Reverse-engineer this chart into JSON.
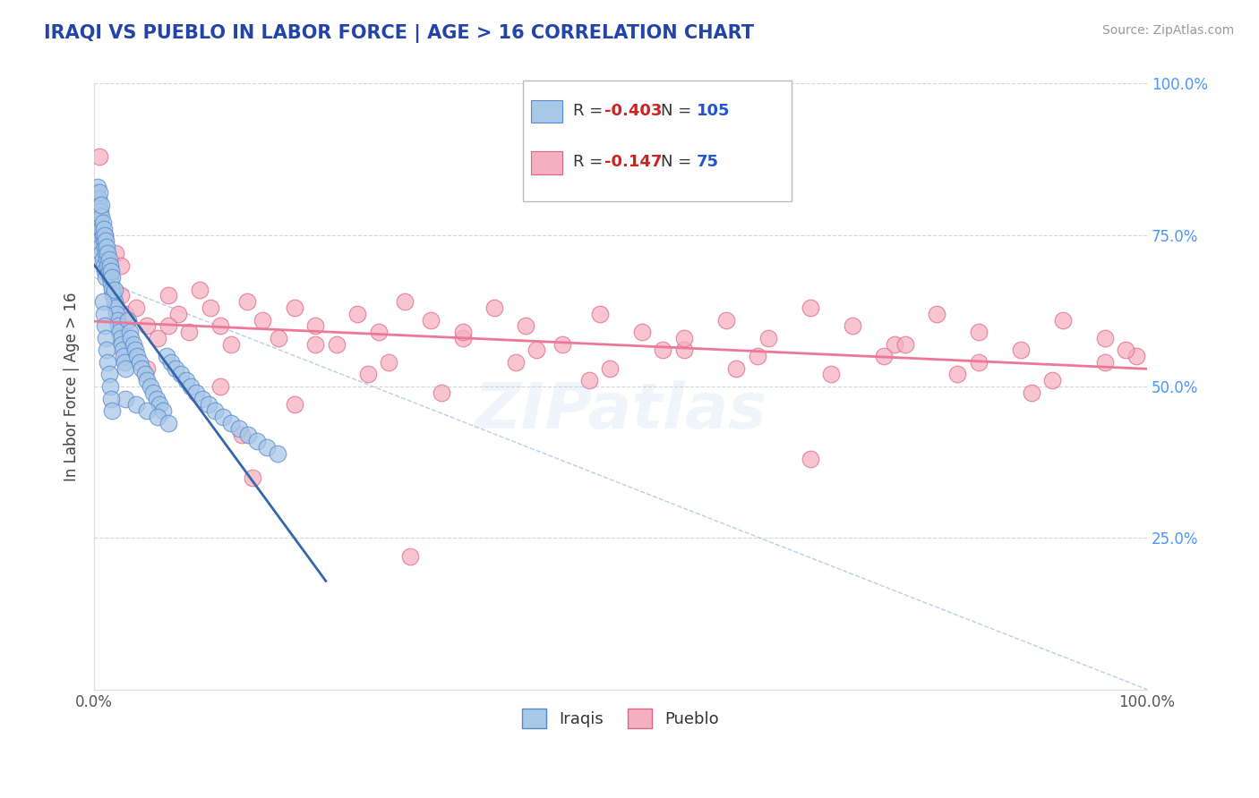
{
  "title": "IRAQI VS PUEBLO IN LABOR FORCE | AGE > 16 CORRELATION CHART",
  "source_text": "Source: ZipAtlas.com",
  "ylabel": "In Labor Force | Age > 16",
  "xlim": [
    0.0,
    1.0
  ],
  "ylim": [
    0.0,
    1.0
  ],
  "iraqi_R": -0.403,
  "iraqi_N": 105,
  "pueblo_R": -0.147,
  "pueblo_N": 75,
  "iraqi_color": "#a8c8e8",
  "iraqi_edge": "#5588cc",
  "pueblo_color": "#f5b0c0",
  "pueblo_edge": "#dd6688",
  "iraqi_line_color": "#3366aa",
  "pueblo_line_color": "#ee7799",
  "title_color": "#2244aa",
  "source_color": "#999999",
  "legend_R_color": "#cc2222",
  "legend_N_color": "#2255cc",
  "right_tick_color": "#4499ff",
  "watermark": "ZIPat las",
  "iraqi_x": [
    0.001,
    0.002,
    0.002,
    0.003,
    0.003,
    0.003,
    0.004,
    0.004,
    0.004,
    0.005,
    0.005,
    0.005,
    0.005,
    0.006,
    0.006,
    0.006,
    0.007,
    0.007,
    0.007,
    0.007,
    0.008,
    0.008,
    0.008,
    0.009,
    0.009,
    0.009,
    0.01,
    0.01,
    0.01,
    0.011,
    0.011,
    0.011,
    0.012,
    0.012,
    0.013,
    0.013,
    0.014,
    0.014,
    0.015,
    0.015,
    0.016,
    0.016,
    0.017,
    0.017,
    0.018,
    0.019,
    0.019,
    0.02,
    0.021,
    0.022,
    0.023,
    0.024,
    0.025,
    0.026,
    0.027,
    0.028,
    0.029,
    0.03,
    0.032,
    0.034,
    0.035,
    0.037,
    0.039,
    0.041,
    0.043,
    0.045,
    0.048,
    0.05,
    0.053,
    0.056,
    0.059,
    0.062,
    0.065,
    0.069,
    0.073,
    0.077,
    0.082,
    0.087,
    0.092,
    0.097,
    0.103,
    0.109,
    0.115,
    0.122,
    0.13,
    0.138,
    0.146,
    0.155,
    0.164,
    0.174,
    0.03,
    0.04,
    0.05,
    0.06,
    0.07,
    0.008,
    0.009,
    0.01,
    0.011,
    0.012,
    0.013,
    0.014,
    0.015,
    0.016,
    0.017
  ],
  "iraqi_y": [
    0.8,
    0.82,
    0.78,
    0.79,
    0.76,
    0.83,
    0.77,
    0.81,
    0.75,
    0.78,
    0.8,
    0.74,
    0.82,
    0.77,
    0.79,
    0.73,
    0.76,
    0.78,
    0.72,
    0.8,
    0.75,
    0.77,
    0.71,
    0.74,
    0.76,
    0.7,
    0.73,
    0.75,
    0.69,
    0.72,
    0.74,
    0.68,
    0.71,
    0.73,
    0.7,
    0.72,
    0.69,
    0.71,
    0.68,
    0.7,
    0.67,
    0.69,
    0.66,
    0.68,
    0.65,
    0.64,
    0.66,
    0.63,
    0.62,
    0.61,
    0.6,
    0.59,
    0.58,
    0.57,
    0.56,
    0.55,
    0.54,
    0.53,
    0.61,
    0.59,
    0.58,
    0.57,
    0.56,
    0.55,
    0.54,
    0.53,
    0.52,
    0.51,
    0.5,
    0.49,
    0.48,
    0.47,
    0.46,
    0.55,
    0.54,
    0.53,
    0.52,
    0.51,
    0.5,
    0.49,
    0.48,
    0.47,
    0.46,
    0.45,
    0.44,
    0.43,
    0.42,
    0.41,
    0.4,
    0.39,
    0.48,
    0.47,
    0.46,
    0.45,
    0.44,
    0.64,
    0.62,
    0.6,
    0.58,
    0.56,
    0.54,
    0.52,
    0.5,
    0.48,
    0.46
  ],
  "pueblo_x": [
    0.005,
    0.01,
    0.015,
    0.02,
    0.025,
    0.03,
    0.04,
    0.05,
    0.06,
    0.07,
    0.08,
    0.09,
    0.1,
    0.11,
    0.12,
    0.13,
    0.145,
    0.16,
    0.175,
    0.19,
    0.21,
    0.23,
    0.25,
    0.27,
    0.295,
    0.32,
    0.35,
    0.38,
    0.41,
    0.445,
    0.48,
    0.52,
    0.56,
    0.6,
    0.64,
    0.68,
    0.72,
    0.76,
    0.8,
    0.84,
    0.88,
    0.92,
    0.96,
    0.99,
    0.07,
    0.14,
    0.21,
    0.28,
    0.35,
    0.42,
    0.49,
    0.56,
    0.63,
    0.7,
    0.77,
    0.84,
    0.91,
    0.98,
    0.05,
    0.12,
    0.19,
    0.26,
    0.33,
    0.4,
    0.47,
    0.54,
    0.61,
    0.68,
    0.75,
    0.82,
    0.89,
    0.96,
    0.025,
    0.15,
    0.3
  ],
  "pueblo_y": [
    0.88,
    0.75,
    0.68,
    0.72,
    0.65,
    0.62,
    0.63,
    0.6,
    0.58,
    0.65,
    0.62,
    0.59,
    0.66,
    0.63,
    0.6,
    0.57,
    0.64,
    0.61,
    0.58,
    0.63,
    0.6,
    0.57,
    0.62,
    0.59,
    0.64,
    0.61,
    0.58,
    0.63,
    0.6,
    0.57,
    0.62,
    0.59,
    0.56,
    0.61,
    0.58,
    0.63,
    0.6,
    0.57,
    0.62,
    0.59,
    0.56,
    0.61,
    0.58,
    0.55,
    0.6,
    0.42,
    0.57,
    0.54,
    0.59,
    0.56,
    0.53,
    0.58,
    0.55,
    0.52,
    0.57,
    0.54,
    0.51,
    0.56,
    0.53,
    0.5,
    0.47,
    0.52,
    0.49,
    0.54,
    0.51,
    0.56,
    0.53,
    0.38,
    0.55,
    0.52,
    0.49,
    0.54,
    0.7,
    0.35,
    0.22
  ]
}
